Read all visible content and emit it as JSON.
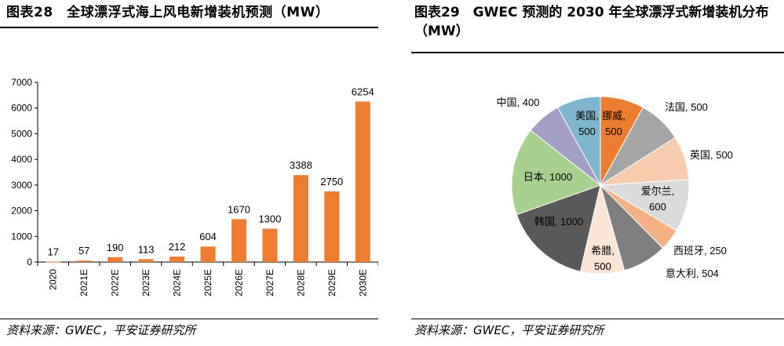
{
  "left": {
    "title": "图表28　全球漂浮式海上风电新增装机预测（MW）",
    "source": "资料来源：GWEC，平安证券研究所"
  },
  "right": {
    "title": "图表29　GWEC 预测的 2030 年全球漂浮式新增装机分布（MW）",
    "source": "资料来源：GWEC，平安证券研究所"
  },
  "chart_data": [
    {
      "type": "bar",
      "categories": [
        "2020",
        "2021E",
        "2022E",
        "2023E",
        "2024E",
        "2025E",
        "2026E",
        "2027E",
        "2028E",
        "2029E",
        "2030E"
      ],
      "values": [
        17,
        57,
        190,
        113,
        212,
        604,
        1670,
        1300,
        3388,
        2750,
        6254
      ],
      "ylim": [
        0,
        7000
      ],
      "yticks": [
        0,
        1000,
        2000,
        3000,
        4000,
        5000,
        6000,
        7000
      ],
      "color": "#ED7D31",
      "data_labels": true,
      "grid": false
    },
    {
      "type": "pie",
      "slices": [
        {
          "label": "挪威",
          "value": 500,
          "color": "#ED7D31"
        },
        {
          "label": "法国",
          "value": 500,
          "color": "#A5A5A5"
        },
        {
          "label": "英国",
          "value": 500,
          "color": "#F8CBAD"
        },
        {
          "label": "爱尔兰",
          "value": 600,
          "color": "#DBDBDB"
        },
        {
          "label": "西班牙",
          "value": 250,
          "color": "#F4B183"
        },
        {
          "label": "意大利",
          "value": 504,
          "color": "#7F7F7F"
        },
        {
          "label": "希腊",
          "value": 500,
          "color": "#FBE5D6"
        },
        {
          "label": "韩国",
          "value": 1000,
          "color": "#595959"
        },
        {
          "label": "日本",
          "value": 1000,
          "color": "#A9D18E"
        },
        {
          "label": "中国",
          "value": 400,
          "color": "#A29EC5"
        },
        {
          "label": "美国",
          "value": 500,
          "color": "#7EB6D0"
        }
      ],
      "slice_labels": [
        "挪威,\n500",
        "法国, 500",
        "英国, 500",
        "爱尔兰,\n600",
        "西班牙, 250",
        "意大利, 504",
        "希腊,\n500",
        "韩国, 1000",
        "日本, 1000",
        "中国, 400",
        "美国,\n500"
      ]
    }
  ]
}
